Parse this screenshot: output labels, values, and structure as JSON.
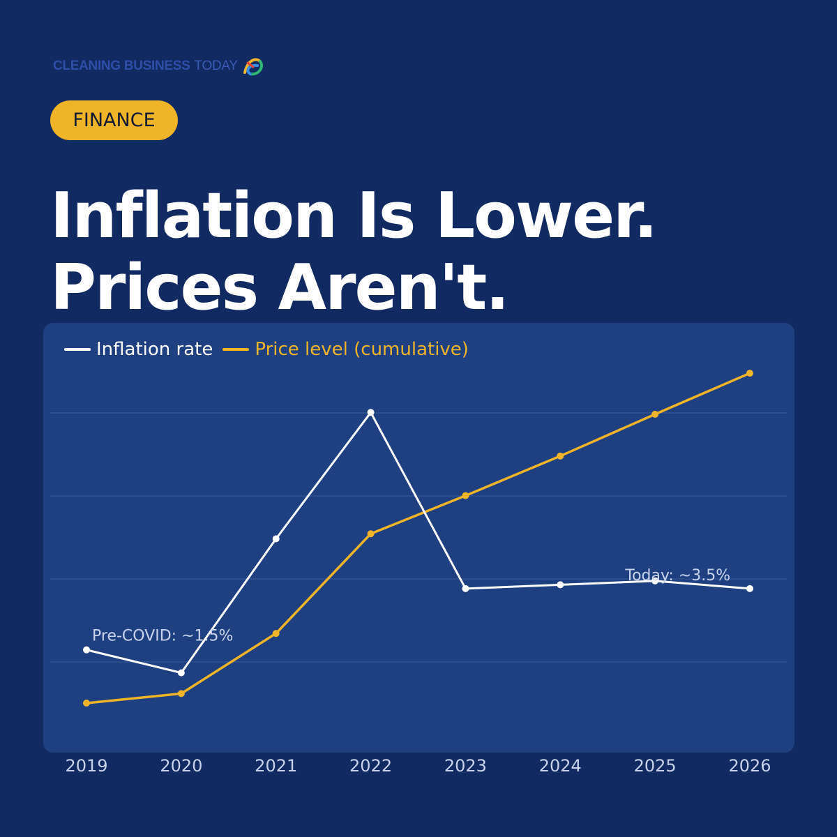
{
  "brand": {
    "name_bold": "CLEANING BUSINESS",
    "name_light": "TODAY",
    "icon": "swirl-logo-icon"
  },
  "badge": {
    "label": "FINANCE",
    "color": "#f0b429"
  },
  "headline": {
    "line1": "Inflation Is Lower.",
    "line2": "Prices Aren't."
  },
  "colors": {
    "background": "#112a61",
    "panel": "#1f4080",
    "inflation": "#ffffff",
    "price": "#f0b429"
  },
  "chart_data": {
    "type": "line",
    "categories": [
      "2019",
      "2020",
      "2021",
      "2022",
      "2023",
      "2024",
      "2025",
      "2026"
    ],
    "series": [
      {
        "name": "Inflation rate",
        "color": "#ffffff",
        "values": [
          1.8,
          1.2,
          4.7,
          8.0,
          3.4,
          3.5,
          3.6,
          3.4
        ]
      },
      {
        "name": "Price level (cumulative)",
        "color": "#f0b429",
        "values": [
          100,
          101.3,
          109.5,
          123.1,
          128.3,
          133.7,
          139.4,
          145.0
        ]
      }
    ],
    "annotations": [
      {
        "text": "Pre-COVID: ~1.5%",
        "series": 0,
        "index": 0
      },
      {
        "text": "Today: ~3.5%",
        "series": 0,
        "index": 6
      }
    ],
    "legend": "top-left",
    "grid": true
  }
}
